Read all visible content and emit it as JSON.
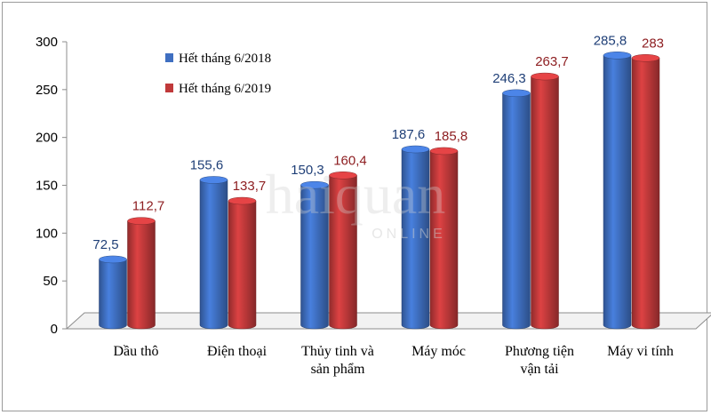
{
  "chart_data": {
    "type": "bar",
    "title": "",
    "xlabel": "",
    "ylabel": "",
    "ylim": [
      0,
      300
    ],
    "yticks": [
      0,
      50,
      100,
      150,
      200,
      250,
      300
    ],
    "categories": [
      "Dầu thô",
      "Điện thoại",
      "Thủy tinh và sản phẩm",
      "Máy móc",
      "Phương tiện vận tải",
      "Máy vi tính"
    ],
    "category_lines": [
      [
        "Dầu thô"
      ],
      [
        "Điện thoại"
      ],
      [
        "Thủy tinh và",
        "sản phẩm"
      ],
      [
        "Máy móc"
      ],
      [
        "Phương tiện",
        "vận tải"
      ],
      [
        "Máy vi tính"
      ]
    ],
    "series": [
      {
        "name": "Hết tháng 6/2018",
        "values": [
          72.5,
          155.6,
          150.3,
          187.6,
          246.3,
          285.8
        ],
        "labels": [
          "72,5",
          "155,6",
          "150,3",
          "187,6",
          "246,3",
          "285,8"
        ],
        "color": "#3f6fc1",
        "label_color": "#1f3f77"
      },
      {
        "name": "Hết tháng 6/2019",
        "values": [
          112.7,
          133.7,
          160.4,
          185.8,
          263.7,
          283
        ],
        "labels": [
          "112,7",
          "133,7",
          "160,4",
          "185,8",
          "263,7",
          "283"
        ],
        "color": "#c0393a",
        "label_color": "#8e1f22"
      }
    ],
    "grid": false,
    "legend": "top-left",
    "three_d": true
  },
  "watermark": {
    "main": "haiquan",
    "sub": "ONLINE"
  }
}
